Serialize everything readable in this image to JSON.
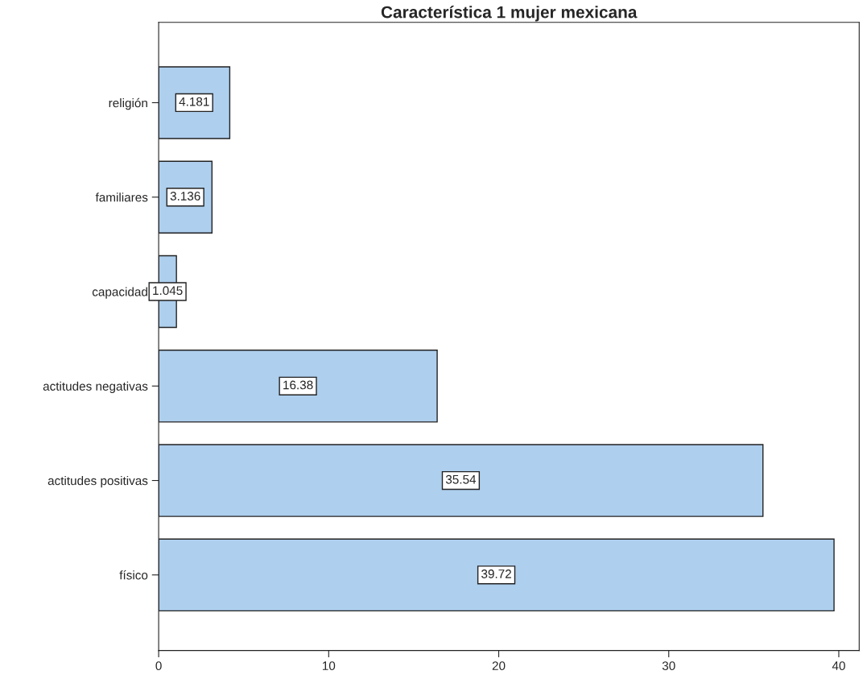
{
  "chart_data": {
    "type": "bar",
    "orientation": "horizontal",
    "title": "Característica 1 mujer mexicana",
    "categories": [
      "religión",
      "familiares",
      "capacidad",
      "actitudes negativas",
      "actitudes positivas",
      "físico"
    ],
    "values": [
      4.181,
      3.136,
      1.045,
      16.38,
      35.54,
      39.72
    ],
    "color": "#aecfee",
    "xlim": [
      0,
      41.2
    ],
    "xticks": [
      0,
      10,
      20,
      30,
      40
    ],
    "data_labels": true,
    "grid": false,
    "legend": false
  }
}
